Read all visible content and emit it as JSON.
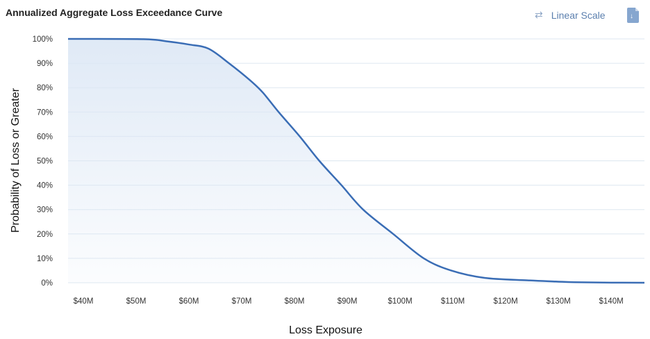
{
  "header": {
    "title": "Annualized Aggregate Loss Exceedance Curve",
    "scale_toggle_label": "Linear Scale",
    "scale_toggle_icon": "swap-arrows-icon",
    "download_icon": "download-file-icon"
  },
  "colors": {
    "line": "#3a6db5",
    "fill": "#dce7f5",
    "grid": "#dde7f0"
  },
  "chart_data": {
    "type": "area",
    "title": "Annualized Aggregate Loss Exceedance Curve",
    "xlabel": "Loss Exposure",
    "ylabel": "Probability of Loss or Greater",
    "xlim": [
      37.1,
      146.3
    ],
    "ylim": [
      0,
      100
    ],
    "x_unit": "$M",
    "y_unit": "%",
    "grid": true,
    "xticks": [
      {
        "v": 40,
        "label": "$40M"
      },
      {
        "v": 50,
        "label": "$50M"
      },
      {
        "v": 60,
        "label": "$60M"
      },
      {
        "v": 70,
        "label": "$70M"
      },
      {
        "v": 80,
        "label": "$80M"
      },
      {
        "v": 90,
        "label": "$90M"
      },
      {
        "v": 100,
        "label": "$100M"
      },
      {
        "v": 110,
        "label": "$110M"
      },
      {
        "v": 120,
        "label": "$120M"
      },
      {
        "v": 130,
        "label": "$130M"
      },
      {
        "v": 140,
        "label": "$140M"
      }
    ],
    "yticks": [
      {
        "v": 0,
        "label": "0%"
      },
      {
        "v": 10,
        "label": "10%"
      },
      {
        "v": 20,
        "label": "20%"
      },
      {
        "v": 30,
        "label": "30%"
      },
      {
        "v": 40,
        "label": "40%"
      },
      {
        "v": 50,
        "label": "50%"
      },
      {
        "v": 60,
        "label": "60%"
      },
      {
        "v": 70,
        "label": "70%"
      },
      {
        "v": 80,
        "label": "80%"
      },
      {
        "v": 90,
        "label": "90%"
      },
      {
        "v": 100,
        "label": "100%"
      }
    ],
    "series": [
      {
        "x": [
          37.1,
          51.4,
          55.8,
          60,
          63.7,
          67.6,
          71.6,
          74,
          77,
          81,
          84.7,
          88.9,
          93,
          98.7,
          104.5,
          109.7,
          116,
          124,
          129.5,
          133,
          140,
          146.3
        ],
        "y": [
          100,
          99.9,
          99,
          97.7,
          96,
          90,
          83,
          78,
          70,
          60,
          50,
          40,
          30,
          20,
          10,
          5,
          2,
          1,
          0.5,
          0.2,
          0.05,
          0
        ]
      }
    ]
  }
}
